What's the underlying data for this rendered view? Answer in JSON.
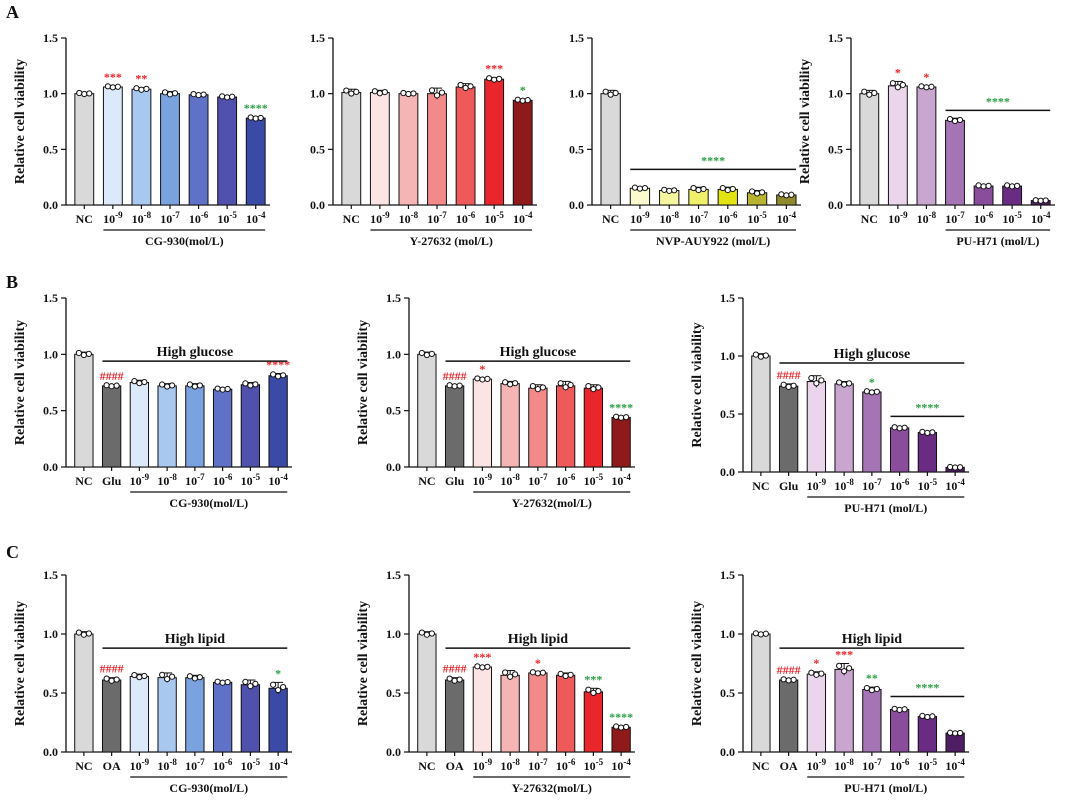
{
  "panel_labels": [
    "A",
    "B",
    "C"
  ],
  "colors": {
    "nc": "#d9d9d9",
    "treated": "#6b6b6b",
    "sig_red": "#e8262b",
    "sig_green": "#2e9e48",
    "cg930": [
      "#dbe9fb",
      "#a9c8ef",
      "#7aa2de",
      "#5f72c8",
      "#5050ad",
      "#3a4aa6"
    ],
    "y27632": [
      "#fde4e4",
      "#f6b5b5",
      "#f28a8a",
      "#ee5a5a",
      "#e8262b",
      "#8e1a1a"
    ],
    "nvp": [
      "#fbfbcf",
      "#f5f5a0",
      "#f0f06a",
      "#e3e314",
      "#b8b430",
      "#8f8a2c"
    ],
    "puh71": [
      "#ead5ec",
      "#c9a6d0",
      "#a574b4",
      "#8a4d9c",
      "#6a2b82",
      "#4f1d63"
    ]
  },
  "chart_data": [
    {
      "id": "A1",
      "type": "bar",
      "ylabel": "Relative cell viability",
      "ylim": [
        0,
        1.5
      ],
      "yticks": [
        "0.0",
        "0.5",
        "1.0",
        "1.5"
      ],
      "categories": [
        "NC",
        "10-9",
        "10-8",
        "10-7",
        "10-6",
        "10-5",
        "10-4"
      ],
      "values": [
        1.0,
        1.06,
        1.04,
        1.0,
        0.99,
        0.97,
        0.78
      ],
      "errors": [
        0.01,
        0.01,
        0.015,
        0.02,
        0.01,
        0.01,
        0.01
      ],
      "colors": [
        "#d9d9d9",
        "#dbe9fb",
        "#a9c8ef",
        "#7aa2de",
        "#5f72c8",
        "#5050ad",
        "#3a4aa6"
      ],
      "sig": [
        {
          "i": 1,
          "text": "***",
          "color": "#e8262b"
        },
        {
          "i": 2,
          "text": "**",
          "color": "#e8262b"
        },
        {
          "i": 6,
          "text": "****",
          "color": "#2e9e48"
        }
      ],
      "xgroup": {
        "label": "CG-930(mol/L)",
        "from": 1,
        "to": 6
      }
    },
    {
      "id": "A2",
      "type": "bar",
      "ylabel": "",
      "ylim": [
        0,
        1.5
      ],
      "yticks": [
        "0.0",
        "0.5",
        "1.0",
        "1.5"
      ],
      "categories": [
        "NC",
        "10-9",
        "10-8",
        "10-7",
        "10-6",
        "10-5",
        "10-4"
      ],
      "values": [
        1.01,
        1.01,
        1.0,
        1.0,
        1.06,
        1.13,
        0.94
      ],
      "errors": [
        0.03,
        0.02,
        0.01,
        0.05,
        0.03,
        0.015,
        0.01
      ],
      "colors": [
        "#d9d9d9",
        "#fde4e4",
        "#f6b5b5",
        "#f28a8a",
        "#ee5a5a",
        "#e8262b",
        "#8e1a1a"
      ],
      "sig": [
        {
          "i": 5,
          "text": "***",
          "color": "#e8262b"
        },
        {
          "i": 6,
          "text": "*",
          "color": "#2e9e48"
        }
      ],
      "xgroup": {
        "label": "Y-27632 (mol/L)",
        "from": 1,
        "to": 6
      }
    },
    {
      "id": "A3",
      "type": "bar",
      "ylabel": "",
      "ylim": [
        0,
        1.5
      ],
      "yticks": [
        "0.0",
        "0.5",
        "1.0",
        "1.5"
      ],
      "categories": [
        "NC",
        "10-9",
        "10-8",
        "10-7",
        "10-6",
        "10-5",
        "10-4"
      ],
      "values": [
        1.0,
        0.15,
        0.13,
        0.14,
        0.14,
        0.11,
        0.09
      ],
      "errors": [
        0.03,
        0.01,
        0.01,
        0.02,
        0.02,
        0.02,
        0.01
      ],
      "colors": [
        "#d9d9d9",
        "#fbfbcf",
        "#f5f5a0",
        "#f0f06a",
        "#e3e314",
        "#b8b430",
        "#8f8a2c"
      ],
      "sig_lines": [
        {
          "from": 1,
          "to": 6,
          "y": 0.32,
          "text": "****",
          "color": "#2e9e48"
        }
      ],
      "xgroup": {
        "label": "NVP-AUY922 (mol/L)",
        "from": 1,
        "to": 6
      }
    },
    {
      "id": "A4",
      "type": "bar",
      "ylabel": "Relative cell viability",
      "ylim": [
        0,
        1.5
      ],
      "yticks": [
        "0.0",
        "0.5",
        "1.0",
        "1.5"
      ],
      "categories": [
        "NC",
        "10-9",
        "10-8",
        "10-7",
        "10-6",
        "10-5",
        "10-4"
      ],
      "values": [
        1.0,
        1.07,
        1.06,
        0.76,
        0.17,
        0.17,
        0.04
      ],
      "errors": [
        0.03,
        0.04,
        0.01,
        0.02,
        0.01,
        0.01,
        0.005
      ],
      "colors": [
        "#d9d9d9",
        "#ead5ec",
        "#c9a6d0",
        "#a574b4",
        "#8a4d9c",
        "#6a2b82",
        "#4f1d63"
      ],
      "sig": [
        {
          "i": 1,
          "text": "*",
          "color": "#e8262b"
        },
        {
          "i": 2,
          "text": "*",
          "color": "#e8262b"
        }
      ],
      "sig_lines": [
        {
          "from": 3,
          "to": 6,
          "y": 0.85,
          "text": "****",
          "color": "#2e9e48"
        }
      ],
      "xgroup": {
        "label": "PU-H71 (mol/L)",
        "from": 3,
        "to": 6
      }
    },
    {
      "id": "B1",
      "type": "bar",
      "ylabel": "Relative cell viability",
      "ylim": [
        0,
        1.5
      ],
      "yticks": [
        "0.0",
        "0.5",
        "1.0",
        "1.5"
      ],
      "categories": [
        "NC",
        "Glu",
        "10-9",
        "10-8",
        "10-7",
        "10-6",
        "10-5",
        "10-4"
      ],
      "values": [
        1.0,
        0.72,
        0.75,
        0.72,
        0.72,
        0.69,
        0.73,
        0.81
      ],
      "errors": [
        0.02,
        0.01,
        0.02,
        0.02,
        0.02,
        0.01,
        0.02,
        0.02
      ],
      "colors": [
        "#d9d9d9",
        "#6b6b6b",
        "#dbe9fb",
        "#a9c8ef",
        "#7aa2de",
        "#5f72c8",
        "#5050ad",
        "#3a4aa6"
      ],
      "sig": [
        {
          "i": 1,
          "text": "####",
          "color": "#e8262b"
        },
        {
          "i": 7,
          "text": "****",
          "color": "#e8262b"
        }
      ],
      "sig_lines": [
        {
          "from": 1,
          "to": 7,
          "y": 0.94,
          "text": "High glucose",
          "color": "#111111"
        }
      ],
      "xgroup": {
        "label": "CG-930(mol/L)",
        "from": 2,
        "to": 7
      }
    },
    {
      "id": "B2",
      "type": "bar",
      "ylabel": "Relative cell viability",
      "ylim": [
        0,
        1.5
      ],
      "yticks": [
        "0.0",
        "0.5",
        "1.0",
        "1.5"
      ],
      "categories": [
        "NC",
        "Glu",
        "10-9",
        "10-8",
        "10-7",
        "10-6",
        "10-5",
        "10-4"
      ],
      "values": [
        1.0,
        0.72,
        0.78,
        0.74,
        0.7,
        0.72,
        0.7,
        0.44
      ],
      "errors": [
        0.02,
        0.01,
        0.01,
        0.02,
        0.03,
        0.04,
        0.03,
        0.01
      ],
      "colors": [
        "#d9d9d9",
        "#6b6b6b",
        "#fde4e4",
        "#f6b5b5",
        "#f28a8a",
        "#ee5a5a",
        "#e8262b",
        "#8e1a1a"
      ],
      "sig": [
        {
          "i": 1,
          "text": "####",
          "color": "#e8262b"
        },
        {
          "i": 2,
          "text": "*",
          "color": "#e8262b"
        },
        {
          "i": 7,
          "text": "****",
          "color": "#2e9e48"
        }
      ],
      "sig_lines": [
        {
          "from": 1,
          "to": 7,
          "y": 0.94,
          "text": "High glucose",
          "color": "#111111"
        }
      ],
      "xgroup": {
        "label": "Y-27632(mol/L)",
        "from": 2,
        "to": 7
      }
    },
    {
      "id": "B3",
      "type": "bar",
      "ylabel": "Relative cell viability",
      "ylim": [
        0,
        1.5
      ],
      "yticks": [
        "0.0",
        "0.5",
        "1.0",
        "1.5"
      ],
      "categories": [
        "NC",
        "Glu",
        "10-9",
        "10-8",
        "10-7",
        "10-6",
        "10-5",
        "10-4"
      ],
      "values": [
        1.0,
        0.74,
        0.78,
        0.76,
        0.69,
        0.38,
        0.34,
        0.04
      ],
      "errors": [
        0.02,
        0.02,
        0.05,
        0.02,
        0.01,
        0.01,
        0.01,
        0.005
      ],
      "colors": [
        "#d9d9d9",
        "#6b6b6b",
        "#ead5ec",
        "#c9a6d0",
        "#a574b4",
        "#8a4d9c",
        "#6a2b82",
        "#4f1d63"
      ],
      "sig": [
        {
          "i": 1,
          "text": "####",
          "color": "#e8262b"
        },
        {
          "i": 4,
          "text": "*",
          "color": "#2e9e48"
        }
      ],
      "sig_lines": [
        {
          "from": 1,
          "to": 7,
          "y": 0.94,
          "text": "High glucose",
          "color": "#111111"
        },
        {
          "from": 5,
          "to": 7,
          "y": 0.48,
          "text": "****",
          "color": "#2e9e48"
        }
      ],
      "xgroup": {
        "label": "PU-H71 (mol/L)",
        "from": 2,
        "to": 7
      }
    },
    {
      "id": "C1",
      "type": "bar",
      "ylabel": "Relative cell viability",
      "ylim": [
        0,
        1.5
      ],
      "yticks": [
        "0.0",
        "0.5",
        "1.0",
        "1.5"
      ],
      "categories": [
        "NC",
        "OA",
        "10-9",
        "10-8",
        "10-7",
        "10-6",
        "10-5",
        "10-4"
      ],
      "values": [
        1.0,
        0.61,
        0.64,
        0.63,
        0.63,
        0.59,
        0.57,
        0.54
      ],
      "errors": [
        0.02,
        0.02,
        0.02,
        0.04,
        0.02,
        0.01,
        0.04,
        0.05
      ],
      "colors": [
        "#d9d9d9",
        "#6b6b6b",
        "#dbe9fb",
        "#a9c8ef",
        "#7aa2de",
        "#5f72c8",
        "#5050ad",
        "#3a4aa6"
      ],
      "sig": [
        {
          "i": 1,
          "text": "####",
          "color": "#e8262b"
        },
        {
          "i": 7,
          "text": "*",
          "color": "#2e9e48"
        }
      ],
      "sig_lines": [
        {
          "from": 1,
          "to": 7,
          "y": 0.88,
          "text": "High lipid",
          "color": "#111111"
        }
      ],
      "xgroup": {
        "label": "CG-930(mol/L)",
        "from": 2,
        "to": 7
      }
    },
    {
      "id": "C2",
      "type": "bar",
      "ylabel": "Relative cell viability",
      "ylim": [
        0,
        1.5
      ],
      "yticks": [
        "0.0",
        "0.5",
        "1.0",
        "1.5"
      ],
      "categories": [
        "NC",
        "OA",
        "10-9",
        "10-8",
        "10-7",
        "10-6",
        "10-5",
        "10-4"
      ],
      "values": [
        1.0,
        0.61,
        0.72,
        0.65,
        0.67,
        0.65,
        0.51,
        0.21
      ],
      "errors": [
        0.02,
        0.02,
        0.01,
        0.04,
        0.01,
        0.02,
        0.03,
        0.01
      ],
      "colors": [
        "#d9d9d9",
        "#6b6b6b",
        "#fde4e4",
        "#f6b5b5",
        "#f28a8a",
        "#ee5a5a",
        "#e8262b",
        "#8e1a1a"
      ],
      "sig": [
        {
          "i": 1,
          "text": "####",
          "color": "#e8262b"
        },
        {
          "i": 2,
          "text": "***",
          "color": "#e8262b"
        },
        {
          "i": 4,
          "text": "*",
          "color": "#e8262b"
        },
        {
          "i": 6,
          "text": "***",
          "color": "#2e9e48"
        },
        {
          "i": 7,
          "text": "****",
          "color": "#2e9e48"
        }
      ],
      "sig_lines": [
        {
          "from": 1,
          "to": 7,
          "y": 0.88,
          "text": "High lipid",
          "color": "#111111"
        }
      ],
      "xgroup": {
        "label": "Y-27632(mol/L)",
        "from": 2,
        "to": 7
      }
    },
    {
      "id": "C3",
      "type": "bar",
      "ylabel": "Relative cell viability",
      "ylim": [
        0,
        1.5
      ],
      "yticks": [
        "0.0",
        "0.5",
        "1.0",
        "1.5"
      ],
      "categories": [
        "NC",
        "OA",
        "10-9",
        "10-8",
        "10-7",
        "10-6",
        "10-5",
        "10-4"
      ],
      "values": [
        1.0,
        0.61,
        0.66,
        0.7,
        0.53,
        0.36,
        0.3,
        0.16
      ],
      "errors": [
        0.01,
        0.01,
        0.02,
        0.05,
        0.02,
        0.01,
        0.01,
        0.005
      ],
      "colors": [
        "#d9d9d9",
        "#6b6b6b",
        "#ead5ec",
        "#c9a6d0",
        "#a574b4",
        "#8a4d9c",
        "#6a2b82",
        "#4f1d63"
      ],
      "sig": [
        {
          "i": 1,
          "text": "####",
          "color": "#e8262b"
        },
        {
          "i": 2,
          "text": "*",
          "color": "#e8262b"
        },
        {
          "i": 3,
          "text": "***",
          "color": "#e8262b"
        },
        {
          "i": 4,
          "text": "**",
          "color": "#2e9e48"
        }
      ],
      "sig_lines": [
        {
          "from": 1,
          "to": 7,
          "y": 0.88,
          "text": "High lipid",
          "color": "#111111"
        },
        {
          "from": 5,
          "to": 7,
          "y": 0.47,
          "text": "****",
          "color": "#2e9e48"
        }
      ],
      "xgroup": {
        "label": "PU-H71 (mol/L)",
        "from": 2,
        "to": 7
      }
    }
  ]
}
